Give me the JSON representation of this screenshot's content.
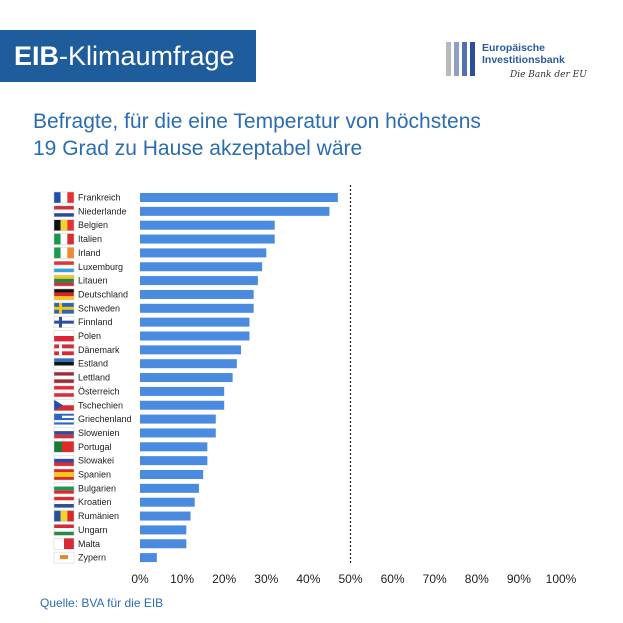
{
  "header": {
    "brand_bold": "EIB",
    "brand_rest": "-Klimaumfrage"
  },
  "logo": {
    "line1": "Europäische",
    "line2": "Investitionsbank",
    "tagline": "Die Bank der EU"
  },
  "title_lines": [
    "Befragte, für die eine Temperatur von höchstens",
    "19 Grad zu Hause akzeptabel wäre"
  ],
  "source": "Quelle: BVA für die EIB",
  "colors": {
    "bar": "#4a8be0",
    "title": "#2a6db2",
    "banner": "#1e5c9b"
  },
  "chart_data": {
    "type": "bar",
    "orientation": "horizontal",
    "categories": [
      "Frankreich",
      "Niederlande",
      "Belgien",
      "Italien",
      "Irland",
      "Luxemburg",
      "Litauen",
      "Deutschland",
      "Schweden",
      "Finnland",
      "Polen",
      "Dänemark",
      "Estland",
      "Lettland",
      "Österreich",
      "Tschechien",
      "Griechenland",
      "Slowenien",
      "Portugal",
      "Slowakei",
      "Spanien",
      "Bulgarien",
      "Kroatien",
      "Rumänien",
      "Ungarn",
      "Malta",
      "Zypern"
    ],
    "values": [
      47,
      45,
      32,
      32,
      30,
      29,
      28,
      27,
      27,
      26,
      26,
      24,
      23,
      22,
      20,
      20,
      18,
      18,
      16,
      16,
      15,
      14,
      13,
      12,
      11,
      11,
      4
    ],
    "xlim": [
      0,
      100
    ],
    "x_ticks": [
      "0%",
      "10%",
      "20%",
      "30%",
      "40%",
      "50%",
      "60%",
      "70%",
      "80%",
      "90%",
      "100%"
    ],
    "reference_line": 50,
    "grid": false
  }
}
